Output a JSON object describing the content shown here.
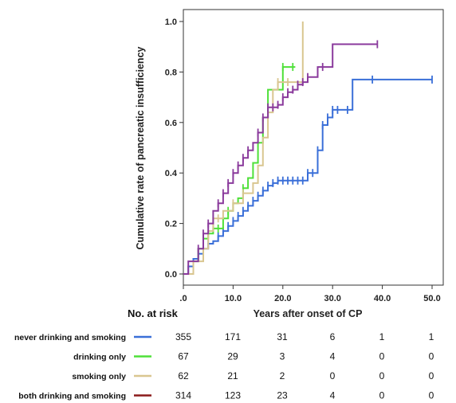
{
  "chart_data": {
    "type": "line",
    "step": true,
    "ylabel": "Cumulative rate of pancreatic insufficiency",
    "xlabel": "Years after onset of CP",
    "xlim": [
      0,
      50
    ],
    "ylim": [
      0,
      1
    ],
    "x_ticks": [
      ".0",
      "10.0",
      "20.0",
      "30.0",
      "40.0",
      "50.0"
    ],
    "y_ticks": [
      "0.0",
      "0.2",
      "0.4",
      "0.6",
      "0.8",
      "1.0"
    ],
    "series": [
      {
        "name": "never drinking and smoking",
        "color": "#3a6fd8",
        "x": [
          0,
          1,
          2,
          3,
          4,
          5,
          6,
          7,
          8,
          9,
          10,
          11,
          12,
          13,
          14,
          15,
          16,
          17,
          18,
          19,
          20,
          22,
          24,
          25,
          26,
          27,
          28,
          29,
          30,
          31,
          34,
          50
        ],
        "y": [
          0,
          0.03,
          0.06,
          0.08,
          0.1,
          0.12,
          0.13,
          0.15,
          0.17,
          0.19,
          0.21,
          0.23,
          0.25,
          0.27,
          0.29,
          0.31,
          0.33,
          0.35,
          0.36,
          0.37,
          0.37,
          0.37,
          0.37,
          0.4,
          0.4,
          0.49,
          0.59,
          0.62,
          0.65,
          0.65,
          0.77,
          0.77
        ],
        "censored_x": [
          3,
          5,
          7,
          8,
          9,
          10,
          11,
          12,
          13,
          14,
          15,
          16,
          17,
          18,
          19,
          20,
          21,
          22,
          23,
          24,
          25,
          26,
          27,
          28,
          29,
          30,
          31,
          33,
          38,
          50
        ]
      },
      {
        "name": "drinking only",
        "color": "#4ee038",
        "x": [
          0,
          2,
          3,
          4,
          5,
          6,
          8,
          9,
          10,
          11,
          12,
          13,
          14,
          15,
          16,
          17,
          18,
          20,
          22.5
        ],
        "y": [
          0,
          0.05,
          0.1,
          0.14,
          0.16,
          0.18,
          0.22,
          0.25,
          0.28,
          0.3,
          0.34,
          0.38,
          0.44,
          0.52,
          0.62,
          0.73,
          0.73,
          0.82,
          0.82
        ],
        "censored_x": [
          4,
          6,
          7,
          9,
          12,
          20,
          22
        ]
      },
      {
        "name": "smoking only",
        "color": "#d9c690",
        "x": [
          0,
          2,
          4,
          5,
          6,
          8,
          10,
          12,
          14,
          15,
          16,
          17,
          18,
          19,
          23,
          24
        ],
        "y": [
          0,
          0.05,
          0.1,
          0.17,
          0.22,
          0.25,
          0.28,
          0.32,
          0.36,
          0.43,
          0.54,
          0.64,
          0.73,
          0.76,
          0.76,
          1.0
        ],
        "censored_x": [
          7,
          10,
          12,
          19,
          21
        ]
      },
      {
        "name": "both drinking and smoking",
        "color": "#8a3a9c",
        "x": [
          0,
          1,
          3,
          4,
          5,
          6,
          7,
          8,
          9,
          10,
          11,
          12,
          13,
          14,
          15,
          16,
          17,
          18,
          19,
          20,
          21,
          22,
          23,
          24,
          25,
          27,
          29,
          30,
          39
        ],
        "y": [
          0,
          0.05,
          0.1,
          0.16,
          0.2,
          0.25,
          0.28,
          0.32,
          0.36,
          0.4,
          0.43,
          0.46,
          0.49,
          0.52,
          0.56,
          0.62,
          0.66,
          0.66,
          0.67,
          0.7,
          0.72,
          0.73,
          0.75,
          0.76,
          0.78,
          0.82,
          0.82,
          0.91,
          0.91
        ],
        "censored_x": [
          3,
          4,
          5,
          7,
          8,
          9,
          10,
          11,
          12,
          13,
          15,
          16,
          17,
          18,
          19,
          20,
          21,
          22,
          23,
          24,
          25,
          28,
          39
        ]
      }
    ]
  },
  "risk_table": {
    "heading": "No. at risk",
    "rows": [
      {
        "label": "never drinking and smoking",
        "color": "#3a6fd8",
        "values": [
          "355",
          "171",
          "31",
          "6",
          "1",
          "1"
        ]
      },
      {
        "label": "drinking only",
        "color": "#4ee038",
        "values": [
          "67",
          "29",
          "3",
          "4",
          "0",
          "0"
        ]
      },
      {
        "label": "smoking only",
        "color": "#d9c690",
        "values": [
          "62",
          "21",
          "2",
          "0",
          "0",
          "0"
        ]
      },
      {
        "label": "both drinking and smoking",
        "color": "#8b1a1a",
        "values": [
          "314",
          "123",
          "23",
          "4",
          "0",
          "0"
        ]
      }
    ]
  }
}
